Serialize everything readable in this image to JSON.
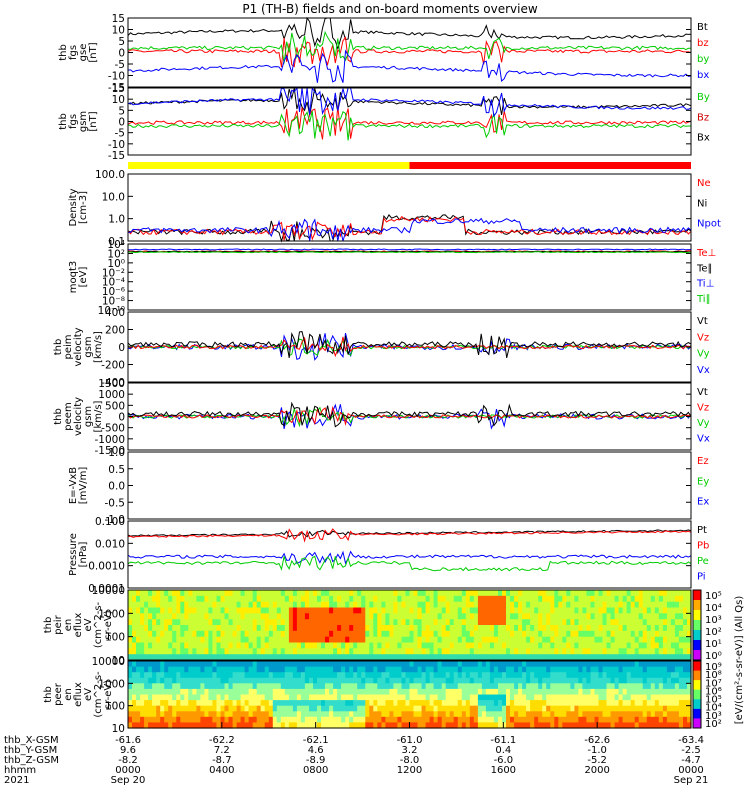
{
  "chart_data": {
    "type": "line",
    "title": "P1 (TH-B) fields and on-board moments overview",
    "x_range": [
      "2021-09-20 00:00",
      "2021-09-21 00:00"
    ],
    "panels": [
      {
        "id": "fgs_gse",
        "ylabel": [
          "thb",
          "fgs",
          "gse",
          "[nT]"
        ],
        "ylim": [
          -15,
          15
        ],
        "ticks": [
          "15",
          "10",
          "5",
          "0",
          "-5",
          "-10",
          "-15"
        ],
        "legend": [
          {
            "name": "Bt",
            "color": "#000000"
          },
          {
            "name": "bz",
            "color": "#ff0000"
          },
          {
            "name": "by",
            "color": "#00cc00"
          },
          {
            "name": "bx",
            "color": "#0000ff"
          }
        ]
      },
      {
        "id": "fgs_gsm",
        "ylabel": [
          "thb",
          "fgs",
          "gsm",
          "[nT]"
        ],
        "ylim": [
          -15,
          15
        ],
        "ticks": [
          "15",
          "10",
          "5",
          "0",
          "-5",
          "-10",
          "-15"
        ],
        "legend": [
          {
            "name": "By",
            "color": "#00cc00"
          },
          {
            "name": "Bz",
            "color": "#cc0000"
          },
          {
            "name": "Bx",
            "color": "#000000"
          }
        ]
      },
      {
        "id": "density",
        "ylabel": [
          "Density",
          "[cm-3]"
        ],
        "log": true,
        "ticks": [
          "100.0",
          "10.0",
          "1.0",
          "0.1"
        ],
        "legend": [
          {
            "name": "Ne",
            "color": "#ff0000"
          },
          {
            "name": "Ni",
            "color": "#000000"
          },
          {
            "name": "Npot",
            "color": "#0000ff"
          }
        ]
      },
      {
        "id": "temps",
        "ylabel": [
          "moqt3",
          "[eV]"
        ],
        "log": true,
        "ticks": [
          "10⁴",
          "10²",
          "10⁰",
          "10⁻²",
          "10⁻⁴",
          "10⁻⁶",
          "10⁻⁸",
          "10⁻¹⁰"
        ],
        "legend": [
          {
            "name": "Te⊥",
            "color": "#ff0000"
          },
          {
            "name": "Te∥",
            "color": "#000000"
          },
          {
            "name": "Ti⊥",
            "color": "#0000ff"
          },
          {
            "name": "Ti∥",
            "color": "#00cc00"
          }
        ]
      },
      {
        "id": "peim_vel",
        "ylabel": [
          "thb",
          "peim",
          "velocity",
          "gsm",
          "[km/s]"
        ],
        "ylim": [
          -400,
          400
        ],
        "ticks": [
          "400",
          "200",
          "0",
          "-200",
          "-400"
        ],
        "legend": [
          {
            "name": "Vt",
            "color": "#000000"
          },
          {
            "name": "Vz",
            "color": "#ff0000"
          },
          {
            "name": "Vy",
            "color": "#00cc00"
          },
          {
            "name": "Vx",
            "color": "#0000ff"
          }
        ]
      },
      {
        "id": "peem_vel",
        "ylabel": [
          "thb",
          "peem",
          "velocity",
          "gsm",
          "[km/s]"
        ],
        "ylim": [
          -1500,
          1500
        ],
        "ticks": [
          "1500",
          "1000",
          "500",
          "0",
          "-500",
          "-1000",
          "-1500"
        ],
        "legend": [
          {
            "name": "Vt",
            "color": "#000000"
          },
          {
            "name": "Vz",
            "color": "#ff0000"
          },
          {
            "name": "Vy",
            "color": "#00cc00"
          },
          {
            "name": "Vx",
            "color": "#0000ff"
          }
        ]
      },
      {
        "id": "efield",
        "ylabel": [
          "E=-VxB",
          "[mV/m]"
        ],
        "ylim": [
          -1.0,
          1.0
        ],
        "ticks": [
          "1.0",
          "0.5",
          "0.0",
          "-0.5",
          "-1.0"
        ],
        "legend": [
          {
            "name": "Ez",
            "color": "#ff0000"
          },
          {
            "name": "Ey",
            "color": "#00cc00"
          },
          {
            "name": "Ex",
            "color": "#0000ff"
          }
        ]
      },
      {
        "id": "pressure",
        "ylabel": [
          "Pressure",
          "[nPa]"
        ],
        "log": true,
        "ticks": [
          "0.100",
          "0.010",
          "0.0010",
          "0.0001"
        ],
        "legend": [
          {
            "name": "Pt",
            "color": "#000000"
          },
          {
            "name": "Pb",
            "color": "#ff0000"
          },
          {
            "name": "Pe",
            "color": "#00cc00"
          },
          {
            "name": "Pi",
            "color": "#0000ff"
          }
        ]
      },
      {
        "id": "peir_eflux",
        "ylabel": [
          "thb",
          "peir",
          "en",
          "eflux",
          "eV",
          "(cm^2-s-",
          "sr-eV)"
        ],
        "log": true,
        "ticks": [
          "10000",
          "1000",
          "100",
          "10"
        ],
        "colorbar_ticks": [
          "10⁵",
          "10⁴",
          "10³",
          "10²",
          "10¹",
          "10⁰"
        ],
        "colorbar_label": "[eV/(cm²-s-sr-eV)] (All Qs)"
      },
      {
        "id": "peer_eflux",
        "ylabel": [
          "thb",
          "peer",
          "en",
          "eflux",
          "eV",
          "(cm^2-s-",
          "sr-eV)"
        ],
        "log": true,
        "ticks": [
          "10000",
          "1000",
          "100",
          "10"
        ],
        "colorbar_ticks": [
          "10⁹",
          "10⁸",
          "10⁷",
          "10⁶",
          "10⁵",
          "10⁴",
          "10³",
          "10²"
        ]
      }
    ],
    "mode_bar": [
      {
        "from": "0000",
        "to": "1200",
        "color": "#ffff00"
      },
      {
        "from": "1200",
        "to": "2400",
        "color": "#ff0000"
      }
    ],
    "x_axis": {
      "rows": [
        {
          "label": "thb_X-GSM",
          "values": [
            "-61.6",
            "-62.2",
            "-62.1",
            "-61.0",
            "-61.1",
            "-62.6",
            "-63.4"
          ]
        },
        {
          "label": "thb_Y-GSM",
          "values": [
            "9.6",
            "7.2",
            "4.6",
            "3.2",
            "0.4",
            "-1.0",
            "-2.5"
          ]
        },
        {
          "label": "thb_Z-GSM",
          "values": [
            "-8.2",
            "-8.7",
            "-8.9",
            "-8.0",
            "-6.0",
            "-5.2",
            "-4.7"
          ]
        },
        {
          "label": "hhmm",
          "values": [
            "0000",
            "0400",
            "0800",
            "1200",
            "1600",
            "2000",
            "0000"
          ]
        },
        {
          "label": "2021",
          "values": [
            "Sep 20",
            "",
            "",
            "",
            "",
            "",
            "Sep 21"
          ]
        }
      ]
    }
  }
}
